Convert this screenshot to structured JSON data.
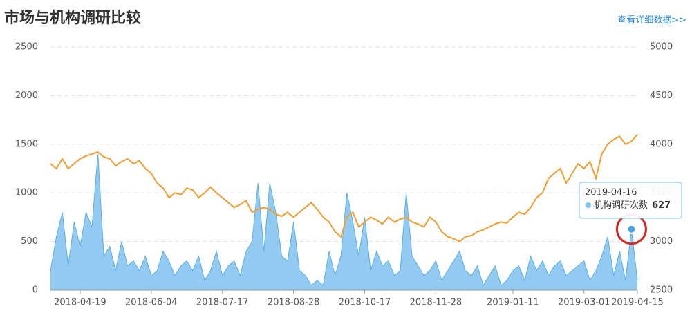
{
  "header": {
    "title": "市场与机构调研比较",
    "link": "查看详细数据>>"
  },
  "chart_data": {
    "type": "area-line",
    "categories": [
      null,
      null,
      null,
      null,
      null,
      "2018-04-19",
      null,
      null,
      null,
      null,
      null,
      null,
      null,
      null,
      null,
      null,
      null,
      "2018-06-04",
      null,
      null,
      null,
      null,
      null,
      null,
      null,
      null,
      null,
      null,
      null,
      "2018-07-17",
      null,
      null,
      null,
      null,
      null,
      null,
      null,
      null,
      null,
      null,
      null,
      "2018-08-28",
      null,
      null,
      null,
      null,
      null,
      null,
      null,
      null,
      null,
      null,
      null,
      "2018-10-17",
      null,
      null,
      null,
      null,
      null,
      null,
      null,
      null,
      null,
      null,
      null,
      "2018-11-28",
      null,
      null,
      null,
      null,
      null,
      null,
      null,
      null,
      null,
      null,
      null,
      null,
      "2019-01-11",
      null,
      null,
      null,
      null,
      null,
      null,
      null,
      null,
      null,
      null,
      null,
      "2019-03-01",
      null,
      null,
      null,
      null,
      null,
      null,
      null,
      null,
      "2019-04-15"
    ],
    "series": [
      {
        "name": "机构调研次数",
        "color": "#7fc1ef",
        "type": "area",
        "values": [
          200,
          550,
          800,
          250,
          700,
          450,
          800,
          650,
          1400,
          350,
          450,
          200,
          500,
          250,
          300,
          200,
          350,
          150,
          200,
          400,
          300,
          150,
          250,
          300,
          200,
          350,
          100,
          200,
          400,
          150,
          250,
          300,
          150,
          400,
          500,
          1100,
          400,
          1100,
          800,
          350,
          300,
          700,
          200,
          150,
          50,
          100,
          50,
          400,
          150,
          350,
          1000,
          700,
          350,
          750,
          200,
          400,
          250,
          300,
          150,
          200,
          1000,
          350,
          250,
          150,
          200,
          300,
          100,
          200,
          300,
          400,
          200,
          150,
          250,
          50,
          150,
          250,
          50,
          100,
          200,
          250,
          100,
          350,
          200,
          300,
          150,
          250,
          300,
          150,
          200,
          250,
          300,
          100,
          200,
          350,
          550,
          150,
          400,
          100,
          627,
          100
        ]
      },
      {
        "color": "#f39b2d",
        "type": "line",
        "axis": "y2",
        "values": [
          3800,
          3750,
          3850,
          3750,
          3800,
          3850,
          3880,
          3900,
          3920,
          3870,
          3850,
          3780,
          3820,
          3850,
          3800,
          3830,
          3750,
          3700,
          3600,
          3550,
          3450,
          3500,
          3480,
          3550,
          3530,
          3450,
          3500,
          3560,
          3500,
          3450,
          3400,
          3350,
          3380,
          3420,
          3300,
          3330,
          3350,
          3330,
          3280,
          3260,
          3300,
          3250,
          3300,
          3350,
          3400,
          3330,
          3250,
          3200,
          3100,
          3050,
          3250,
          3300,
          3150,
          3200,
          3250,
          3220,
          3180,
          3250,
          3200,
          3230,
          3250,
          3200,
          3180,
          3150,
          3250,
          3200,
          3100,
          3050,
          3030,
          3000,
          3050,
          3060,
          3100,
          3120,
          3150,
          3180,
          3200,
          3190,
          3250,
          3300,
          3280,
          3350,
          3450,
          3500,
          3650,
          3700,
          3750,
          3600,
          3700,
          3800,
          3750,
          3820,
          3650,
          3900,
          4000,
          4050,
          4080,
          4000,
          4030,
          4100
        ]
      }
    ],
    "ylim": [
      0,
      2500
    ],
    "yticks": [
      0,
      500,
      1000,
      1500,
      2000,
      2500
    ],
    "y2lim": [
      2500,
      5000
    ],
    "y2ticks": [
      2500,
      3000,
      3500,
      4000,
      4500,
      5000
    ],
    "grid": true,
    "tooltip": {
      "title": "2019-04-16"
    }
  }
}
